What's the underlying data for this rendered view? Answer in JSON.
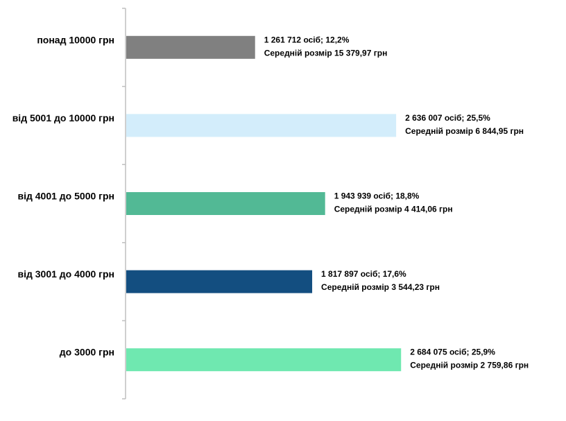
{
  "chart_data": {
    "type": "bar",
    "orientation": "horizontal",
    "title": "",
    "xlabel": "",
    "ylabel": "",
    "xlim": [
      0,
      4000000
    ],
    "grid": false,
    "legend": "none",
    "categories": [
      "понад 10000 грн",
      "від 5001 до 10000 грн",
      "від 4001 до 5000 грн",
      "від 3001 до 4000 грн",
      "до 3000 грн"
    ],
    "values": [
      1261712,
      2636007,
      1943939,
      1817897,
      2684075
    ],
    "colors": [
      "#808080",
      "#d3edfb",
      "#52b995",
      "#134e80",
      "#6fe8b0"
    ],
    "data_labels": [
      [
        "1 261 712 осіб;  12,2%",
        "Середній розмір 15 379,97 грн"
      ],
      [
        "2 636 007 осіб; 25,5%",
        "Середній розмір 6 844,95 грн"
      ],
      [
        "1 943 939 осіб; 18,8%",
        "Середній розмір 4 414,06 грн"
      ],
      [
        "1 817 897 осіб; 17,6%",
        "Середній розмір 3 544,23 грн"
      ],
      [
        "2 684 075 осіб; 25,9%",
        "Середній розмір 2 759,86 грн"
      ]
    ],
    "axis_color": "#bfbfbf"
  }
}
